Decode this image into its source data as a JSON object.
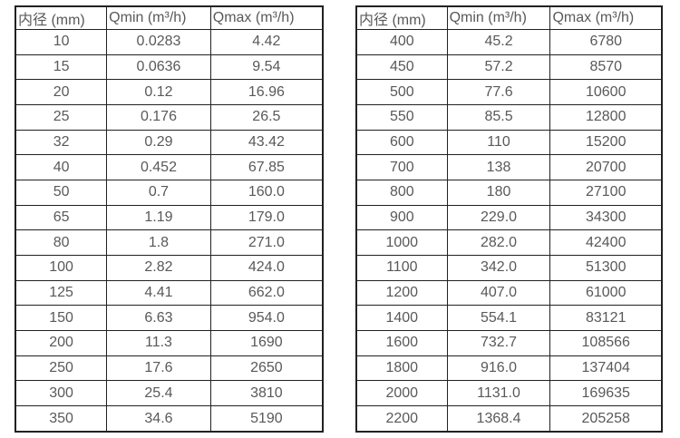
{
  "styles": {
    "text_color": "#595959",
    "border_color": "#212121",
    "background": "#ffffff"
  },
  "tables": [
    {
      "name": "flow-rate-table-small-diameters",
      "headers": [
        "内径 (mm)",
        "Qmin (m³/h)",
        "Qmax (m³/h)"
      ],
      "rows": [
        [
          "10",
          "0.0283",
          "4.42"
        ],
        [
          "15",
          "0.0636",
          "9.54"
        ],
        [
          "20",
          "0.12",
          "16.96"
        ],
        [
          "25",
          "0.176",
          "26.5"
        ],
        [
          "32",
          "0.29",
          "43.42"
        ],
        [
          "40",
          "0.452",
          "67.85"
        ],
        [
          "50",
          "0.7",
          "160.0"
        ],
        [
          "65",
          "1.19",
          "179.0"
        ],
        [
          "80",
          "1.8",
          "271.0"
        ],
        [
          "100",
          "2.82",
          "424.0"
        ],
        [
          "125",
          "4.41",
          "662.0"
        ],
        [
          "150",
          "6.63",
          "954.0"
        ],
        [
          "200",
          "11.3",
          "1690"
        ],
        [
          "250",
          "17.6",
          "2650"
        ],
        [
          "300",
          "25.4",
          "3810"
        ],
        [
          "350",
          "34.6",
          "5190"
        ]
      ]
    },
    {
      "name": "flow-rate-table-large-diameters",
      "headers": [
        "内径 (mm)",
        "Qmin (m³/h)",
        "Qmax (m³/h)"
      ],
      "rows": [
        [
          "400",
          "45.2",
          "6780"
        ],
        [
          "450",
          "57.2",
          "8570"
        ],
        [
          "500",
          "77.6",
          "10600"
        ],
        [
          "550",
          "85.5",
          "12800"
        ],
        [
          "600",
          "110",
          "15200"
        ],
        [
          "700",
          "138",
          "20700"
        ],
        [
          "800",
          "180",
          "27100"
        ],
        [
          "900",
          "229.0",
          "34300"
        ],
        [
          "1000",
          "282.0",
          "42400"
        ],
        [
          "1100",
          "342.0",
          "51300"
        ],
        [
          "1200",
          "407.0",
          "61000"
        ],
        [
          "1400",
          "554.1",
          "83121"
        ],
        [
          "1600",
          "732.7",
          "108566"
        ],
        [
          "1800",
          "916.0",
          "137404"
        ],
        [
          "2000",
          "1131.0",
          "169635"
        ],
        [
          "2200",
          "1368.4",
          "205258"
        ]
      ]
    }
  ]
}
